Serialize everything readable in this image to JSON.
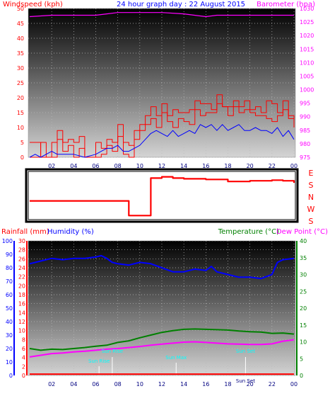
{
  "chart_data": [
    {
      "type": "line",
      "title": "24 hour graph day : 22 August 2015",
      "ylabel_left": "Windspeed (kph)",
      "ylabel_right": "Barometer (hpa)",
      "x_ticks": [
        "02",
        "04",
        "06",
        "08",
        "10",
        "12",
        "14",
        "16",
        "18",
        "20",
        "22",
        "00"
      ],
      "ylim_left": [
        0,
        50
      ],
      "y_ticks_left": [
        "0",
        "5",
        "10",
        "15",
        "20",
        "25",
        "30",
        "35",
        "40",
        "45",
        "50"
      ],
      "ylim_right": [
        975,
        1030
      ],
      "y_ticks_right": [
        "975",
        "980",
        "985",
        "990",
        "995",
        "1000",
        "1005",
        "1010",
        "1015",
        "1020",
        "1025",
        "1030"
      ],
      "grid": true,
      "series": [
        {
          "name": "Windspeed (kph)",
          "axis": "left",
          "color": "#ff0000",
          "x": [
            0,
            1,
            1.5,
            2.5,
            3,
            3.5,
            4,
            4.5,
            5,
            5.5,
            6,
            6.5,
            7,
            7.5,
            8,
            8.5,
            9,
            9.5,
            10,
            10.5,
            11,
            11.5,
            12,
            12.5,
            13,
            13.5,
            14,
            14.5,
            15,
            15.5,
            16,
            16.5,
            17,
            17.5,
            18,
            18.5,
            19,
            19.5,
            20,
            20.5,
            21,
            21.5,
            22,
            22.5,
            23,
            23.5,
            24
          ],
          "values": [
            0,
            5,
            0,
            6,
            2,
            4,
            0,
            3,
            0,
            0,
            0,
            1,
            4,
            2,
            7,
            1,
            0,
            6,
            9,
            11,
            13,
            10,
            15,
            12,
            10,
            13,
            12,
            11,
            16,
            14,
            15,
            15,
            18,
            17,
            14,
            17,
            15,
            16,
            15,
            14,
            14,
            13,
            12,
            14,
            16,
            13,
            10
          ]
        },
        {
          "name": "Wind gust (kph)",
          "axis": "left",
          "color": "#ff0000",
          "x": [
            0,
            1,
            2,
            2.5,
            3,
            3.5,
            4,
            4.5,
            5,
            5.5,
            6,
            6.5,
            7,
            7.5,
            8,
            8.5,
            9,
            9.5,
            10,
            10.5,
            11,
            11.5,
            12,
            12.5,
            13,
            13.5,
            14,
            14.5,
            15,
            15.5,
            16,
            16.5,
            17,
            17.5,
            18,
            18.5,
            19,
            19.5,
            20,
            20.5,
            21,
            21.5,
            22,
            22.5,
            23,
            23.5,
            24
          ],
          "values": [
            5,
            0,
            5,
            9,
            5,
            6,
            5,
            7,
            0,
            0,
            5,
            3,
            6,
            5,
            11,
            5,
            4,
            9,
            11,
            14,
            17,
            14,
            18,
            14,
            16,
            15,
            15,
            16,
            19,
            18,
            18,
            16,
            21,
            17,
            17,
            19,
            17,
            19,
            16,
            17,
            15,
            19,
            18,
            15,
            19,
            14,
            12
          ]
        },
        {
          "name": "Wind average (kph)",
          "axis": "left",
          "color": "#0000ff",
          "x": [
            0,
            0.5,
            1,
            2,
            2.5,
            3,
            3.5,
            4,
            5,
            6,
            6.5,
            7,
            7.5,
            8,
            8.5,
            9,
            9.5,
            10,
            10.5,
            11,
            11.5,
            12,
            12.5,
            13,
            13.5,
            14,
            14.5,
            15,
            15.5,
            16,
            16.5,
            17,
            17.5,
            18,
            18.5,
            19,
            19.5,
            20,
            20.5,
            21,
            21.5,
            22,
            22.5,
            23,
            23.5,
            24
          ],
          "values": [
            0,
            1,
            0,
            2,
            1,
            1,
            1,
            1,
            0,
            1,
            2,
            3,
            3,
            4,
            2,
            2,
            3,
            4,
            6,
            8,
            9,
            8,
            7,
            9,
            7,
            8,
            9,
            8,
            11,
            10,
            11,
            9,
            11,
            9,
            10,
            11,
            9,
            9,
            10,
            9,
            9,
            8,
            10,
            7,
            9,
            6
          ]
        },
        {
          "name": "Barometer (hpa)",
          "axis": "right",
          "color": "#ff00ff",
          "x": [
            0,
            2,
            4,
            6,
            7,
            8,
            10,
            12,
            14,
            16,
            17,
            18,
            20,
            22,
            24
          ],
          "values": [
            1027,
            1027.5,
            1027.5,
            1027.5,
            1028,
            1028.5,
            1028.5,
            1028.5,
            1028,
            1027,
            1027.5,
            1027.5,
            1027.5,
            1027.5,
            1027.5
          ]
        }
      ]
    },
    {
      "type": "line",
      "title": "",
      "x_ticks": [],
      "ylabels": [
        "E",
        "S",
        "N",
        "W",
        "S"
      ],
      "ylim": [
        90,
        450
      ],
      "series": [
        {
          "name": "Wind direction",
          "color": "#ff0000",
          "x": [
            0,
            1,
            2,
            3,
            4,
            5,
            6,
            7,
            8,
            9,
            10,
            11,
            12,
            13,
            14,
            15,
            16,
            17,
            18,
            19,
            20,
            21,
            22,
            23,
            24
          ],
          "values": [
            230,
            230,
            230,
            230,
            230,
            230,
            230,
            230,
            230,
            120,
            120,
            400,
            410,
            400,
            395,
            395,
            390,
            390,
            375,
            375,
            380,
            380,
            385,
            380,
            365
          ]
        }
      ]
    },
    {
      "type": "line",
      "title": "",
      "ylabel_left": "Rainfall (mm)",
      "ylabel_left2": "Humidity (%)",
      "ylabel_right": "Temperature (°C)",
      "ylabel_right2": "Dew Point (°C)",
      "x_ticks": [
        "02",
        "04",
        "06",
        "08",
        "10",
        "12",
        "14",
        "16",
        "18",
        "20",
        "22",
        "00"
      ],
      "ylim_left": [
        0,
        30
      ],
      "y_ticks_left": [
        "0",
        "2",
        "4",
        "6",
        "8",
        "10",
        "12",
        "14",
        "16",
        "18",
        "20",
        "22",
        "24",
        "26",
        "28",
        "30"
      ],
      "ylim_left2": [
        0,
        100
      ],
      "y_ticks_left2": [
        "0",
        "10",
        "20",
        "30",
        "40",
        "50",
        "60",
        "70",
        "80",
        "90",
        "100"
      ],
      "ylim_right": [
        0,
        40
      ],
      "y_ticks_right": [
        "0",
        "5",
        "10",
        "15",
        "20",
        "25",
        "30",
        "35",
        "40"
      ],
      "grid": true,
      "annotations": [
        "Sun Rise",
        "Sun Rise",
        "Sun Max",
        "Sun Set",
        "Sun Set"
      ],
      "series": [
        {
          "name": "Rainfall (mm)",
          "axis": "left",
          "color": "#ff0000",
          "x": [
            0,
            24
          ],
          "values": [
            0.3,
            0.3
          ]
        },
        {
          "name": "Humidity (%)",
          "axis": "left2",
          "color": "#0000ff",
          "x": [
            0,
            1,
            2,
            3,
            4,
            5,
            6,
            6.5,
            7,
            7.5,
            8,
            9,
            10,
            11,
            12,
            13,
            14,
            15,
            16,
            16.5,
            17,
            18,
            19,
            20,
            21,
            22,
            22.5,
            23,
            24
          ],
          "values": [
            83,
            85,
            87,
            86,
            87,
            87,
            88,
            89,
            87,
            84,
            83,
            82,
            84,
            83,
            80,
            77,
            77,
            79,
            78,
            81,
            77,
            75,
            73,
            73,
            72,
            75,
            84,
            86,
            87
          ]
        },
        {
          "name": "Temperature (°C)",
          "axis": "right",
          "color": "#008000",
          "x": [
            0,
            1,
            2,
            3,
            4,
            5,
            6,
            7,
            8,
            9,
            10,
            11,
            12,
            13,
            14,
            15,
            16,
            17,
            18,
            19,
            20,
            21,
            22,
            23,
            24
          ],
          "values": [
            8,
            7.5,
            7.8,
            7.7,
            8,
            8.3,
            8.7,
            9,
            9.8,
            10.3,
            11.2,
            12,
            12.8,
            13.3,
            13.7,
            13.8,
            13.7,
            13.6,
            13.5,
            13.2,
            13,
            12.9,
            12.5,
            12.6,
            12.3
          ]
        },
        {
          "name": "Dew Point (°C)",
          "axis": "right",
          "color": "#ff00ff",
          "x": [
            0,
            1,
            2,
            3,
            4,
            5,
            6,
            7,
            8,
            9,
            10,
            11,
            12,
            13,
            14,
            15,
            16,
            17,
            18,
            19,
            20,
            21,
            22,
            23,
            24
          ],
          "values": [
            5.5,
            6,
            6.5,
            6.7,
            7,
            7.2,
            7.5,
            7.8,
            8,
            8.3,
            8.6,
            9,
            9.3,
            9.6,
            9.9,
            10,
            9.8,
            9.6,
            9.4,
            9.3,
            9.2,
            9.2,
            9.4,
            10.2,
            10.6
          ]
        }
      ]
    }
  ]
}
